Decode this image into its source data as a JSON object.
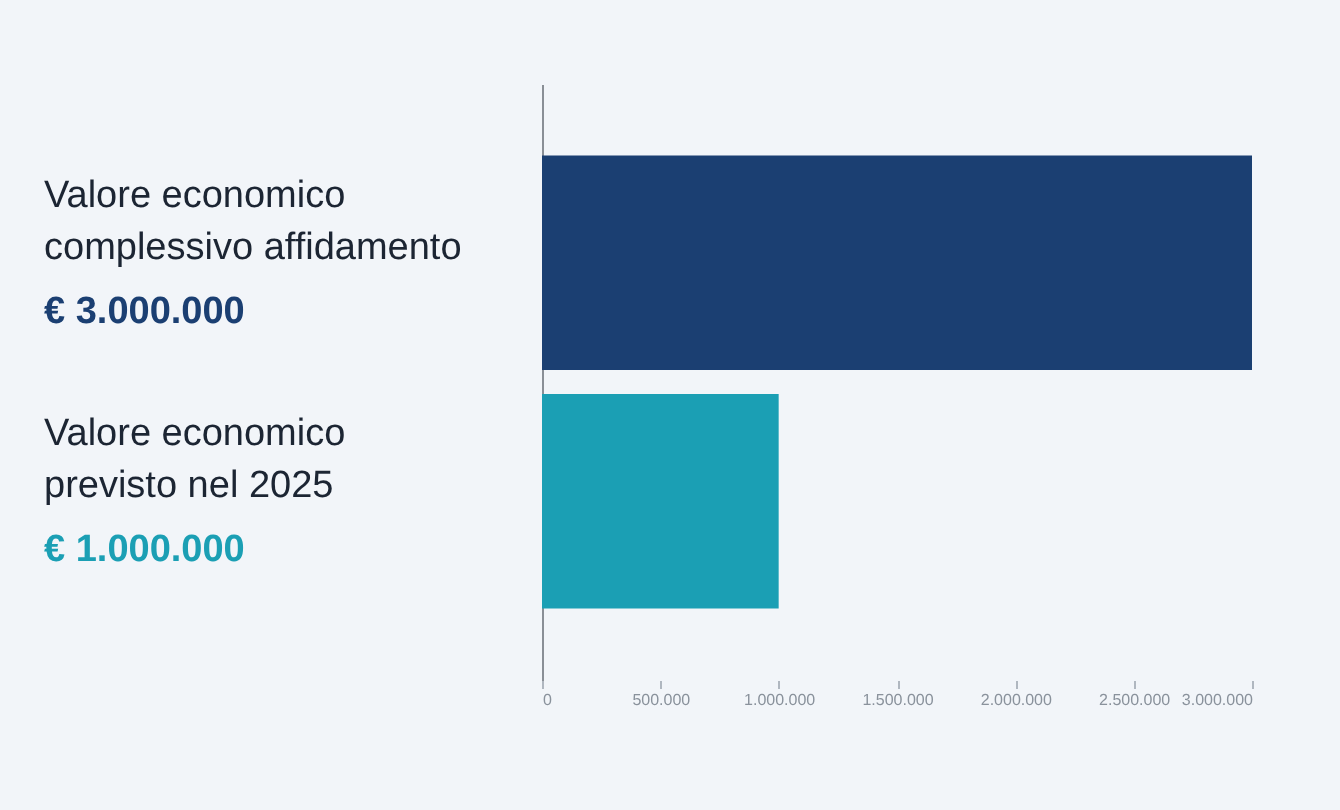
{
  "chart_data": {
    "type": "bar",
    "orientation": "horizontal",
    "categories": [
      "Valore economico complessivo affidamento",
      "Valore economico previsto nel 2025"
    ],
    "values": [
      3000000,
      1000000
    ],
    "colors": [
      "#1b3f72",
      "#1b9fb4"
    ],
    "value_labels": [
      "€ 3.000.000",
      "€ 1.000.000"
    ],
    "xlim": [
      0,
      3000000
    ],
    "xticks": [
      {
        "value": 0,
        "label": "0"
      },
      {
        "value": 500000,
        "label": "500.000"
      },
      {
        "value": 1000000,
        "label": "1.000.000"
      },
      {
        "value": 1500000,
        "label": "1.500.000"
      },
      {
        "value": 2000000,
        "label": "2.000.000"
      },
      {
        "value": 2500000,
        "label": "2.500.000"
      },
      {
        "value": 3000000,
        "label": "3.000.000"
      }
    ],
    "grid": false
  }
}
